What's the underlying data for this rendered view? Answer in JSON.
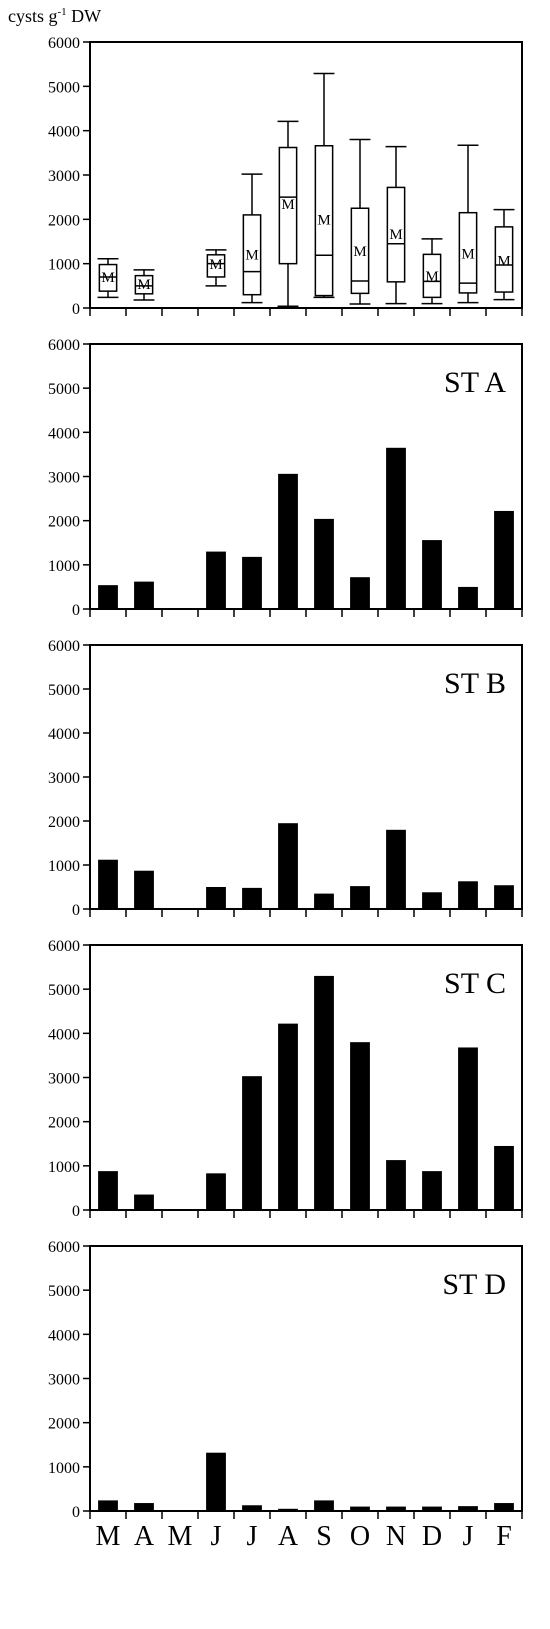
{
  "figure": {
    "unit_label": {
      "main": "cysts  g",
      "sup": "-1",
      "rest": " DW"
    },
    "month_labels": [
      "M",
      "A",
      "M",
      "J",
      "J",
      "A",
      "S",
      "O",
      "N",
      "D",
      "J",
      "F"
    ],
    "colors": {
      "bar": "#000000",
      "axis": "#000000",
      "box": "#000000"
    }
  },
  "chart_data": [
    {
      "type": "box",
      "title": "",
      "ylim": [
        0,
        6000
      ],
      "yticks": [
        0,
        1000,
        2000,
        3000,
        4000,
        5000,
        6000
      ],
      "mean_marker": "M",
      "categories": [
        "M",
        "A",
        "M",
        "J",
        "J",
        "A",
        "S",
        "O",
        "N",
        "D",
        "J",
        "F"
      ],
      "boxes": [
        {
          "min": 240,
          "q1": 380,
          "median": 700,
          "q3": 980,
          "max": 1110,
          "mean": 720
        },
        {
          "min": 180,
          "q1": 320,
          "median": 500,
          "q3": 730,
          "max": 860,
          "mean": 560
        },
        null,
        {
          "min": 500,
          "q1": 700,
          "median": 1000,
          "q3": 1200,
          "max": 1310,
          "mean": 1010
        },
        {
          "min": 120,
          "q1": 300,
          "median": 820,
          "q3": 2100,
          "max": 3020,
          "mean": 1230
        },
        {
          "min": 40,
          "q1": 1000,
          "median": 2500,
          "q3": 3620,
          "max": 4210,
          "mean": 2370
        },
        {
          "min": 240,
          "q1": 280,
          "median": 1190,
          "q3": 3660,
          "max": 5290,
          "mean": 2020
        },
        {
          "min": 90,
          "q1": 330,
          "median": 610,
          "q3": 2250,
          "max": 3800,
          "mean": 1310
        },
        {
          "min": 100,
          "q1": 590,
          "median": 1450,
          "q3": 2720,
          "max": 3640,
          "mean": 1690
        },
        {
          "min": 100,
          "q1": 240,
          "median": 600,
          "q3": 1210,
          "max": 1560,
          "mean": 740
        },
        {
          "min": 120,
          "q1": 340,
          "median": 560,
          "q3": 2150,
          "max": 3670,
          "mean": 1250
        },
        {
          "min": 190,
          "q1": 360,
          "median": 970,
          "q3": 1830,
          "max": 2220,
          "mean": 1090
        }
      ]
    },
    {
      "type": "bar",
      "title": "ST A",
      "ylim": [
        0,
        6000
      ],
      "yticks": [
        0,
        1000,
        2000,
        3000,
        4000,
        5000,
        6000
      ],
      "categories": [
        "M",
        "A",
        "M",
        "J",
        "J",
        "A",
        "S",
        "O",
        "N",
        "D",
        "J",
        "F"
      ],
      "values": [
        540,
        620,
        null,
        1300,
        1180,
        3060,
        2040,
        720,
        3650,
        1560,
        500,
        2220
      ]
    },
    {
      "type": "bar",
      "title": "ST B",
      "ylim": [
        0,
        6000
      ],
      "yticks": [
        0,
        1000,
        2000,
        3000,
        4000,
        5000,
        6000
      ],
      "categories": [
        "M",
        "A",
        "M",
        "J",
        "J",
        "A",
        "S",
        "O",
        "N",
        "D",
        "J",
        "F"
      ],
      "values": [
        1120,
        870,
        null,
        500,
        480,
        1950,
        350,
        520,
        1800,
        380,
        630,
        540
      ]
    },
    {
      "type": "bar",
      "title": "ST C",
      "ylim": [
        0,
        6000
      ],
      "yticks": [
        0,
        1000,
        2000,
        3000,
        4000,
        5000,
        6000
      ],
      "categories": [
        "M",
        "A",
        "M",
        "J",
        "J",
        "A",
        "S",
        "O",
        "N",
        "D",
        "J",
        "F"
      ],
      "values": [
        880,
        350,
        null,
        830,
        3030,
        4220,
        5300,
        3800,
        1130,
        880,
        3680,
        1450
      ]
    },
    {
      "type": "bar",
      "title": "ST D",
      "ylim": [
        0,
        6000
      ],
      "yticks": [
        0,
        1000,
        2000,
        3000,
        4000,
        5000,
        6000
      ],
      "categories": [
        "M",
        "A",
        "M",
        "J",
        "J",
        "A",
        "S",
        "O",
        "N",
        "D",
        "J",
        "F"
      ],
      "values": [
        240,
        180,
        null,
        1320,
        130,
        50,
        240,
        100,
        100,
        100,
        110,
        180
      ]
    }
  ]
}
